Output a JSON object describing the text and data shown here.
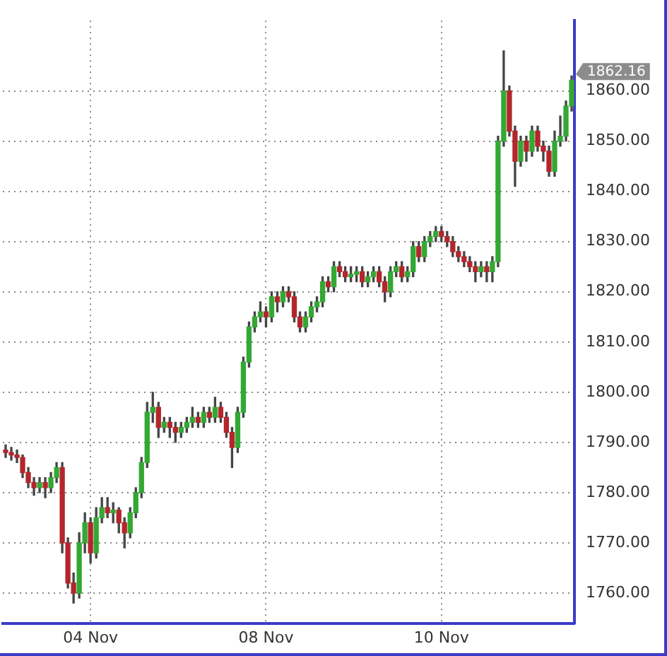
{
  "chart_data": {
    "type": "candlestick",
    "categories": [
      null,
      null,
      null,
      null,
      null,
      null,
      null,
      null,
      null,
      null,
      null,
      null,
      null,
      null,
      null,
      "04 Nov",
      null,
      null,
      null,
      null,
      null,
      null,
      null,
      null,
      null,
      null,
      null,
      null,
      null,
      null,
      null,
      null,
      null,
      null,
      null,
      null,
      null,
      null,
      null,
      null,
      null,
      null,
      null,
      null,
      null,
      null,
      "08 Nov",
      null,
      null,
      null,
      null,
      null,
      null,
      null,
      null,
      null,
      null,
      null,
      null,
      null,
      null,
      null,
      null,
      null,
      null,
      null,
      null,
      null,
      null,
      null,
      null,
      null,
      null,
      null,
      null,
      null,
      null,
      "10 Nov",
      null,
      null,
      null,
      null,
      null,
      null,
      null,
      null,
      null,
      null,
      null,
      null,
      null,
      null,
      null,
      null,
      null,
      null,
      null,
      null,
      null,
      null,
      null
    ],
    "ohlc": [
      [
        1788.5,
        1789.5,
        1787,
        1788
      ],
      [
        1788,
        1789,
        1786.5,
        1787.5
      ],
      [
        1787.5,
        1788.5,
        1786,
        1787
      ],
      [
        1787,
        1787.5,
        1783,
        1784
      ],
      [
        1784,
        1785,
        1781,
        1782
      ],
      [
        1782,
        1783,
        1779.5,
        1781
      ],
      [
        1781,
        1783,
        1780,
        1782
      ],
      [
        1782,
        1783,
        1779,
        1781
      ],
      [
        1781,
        1784,
        1780,
        1783
      ],
      [
        1783,
        1786,
        1782,
        1785
      ],
      [
        1785,
        1786,
        1768,
        1770
      ],
      [
        1770,
        1771,
        1761,
        1762
      ],
      [
        1762,
        1764,
        1758,
        1760
      ],
      [
        1760,
        1772,
        1759,
        1770
      ],
      [
        1770,
        1776,
        1768,
        1774
      ],
      [
        1774,
        1775,
        1766,
        1768
      ],
      [
        1768,
        1777,
        1767,
        1775
      ],
      [
        1775,
        1779,
        1774,
        1777
      ],
      [
        1777,
        1779,
        1775,
        1776
      ],
      [
        1776,
        1778,
        1774,
        1776.5
      ],
      [
        1776.5,
        1777,
        1772,
        1774
      ],
      [
        1774,
        1775,
        1769,
        1772
      ],
      [
        1772,
        1777,
        1771,
        1776
      ],
      [
        1776,
        1781,
        1775,
        1780
      ],
      [
        1780,
        1787,
        1779,
        1786
      ],
      [
        1786,
        1798,
        1785,
        1796
      ],
      [
        1796,
        1800,
        1794,
        1797
      ],
      [
        1797,
        1798,
        1791,
        1793
      ],
      [
        1793,
        1795,
        1792,
        1794
      ],
      [
        1794,
        1795,
        1791,
        1793
      ],
      [
        1793,
        1794,
        1790,
        1792
      ],
      [
        1792,
        1794,
        1791,
        1793
      ],
      [
        1793,
        1795,
        1792,
        1794
      ],
      [
        1794,
        1797,
        1793,
        1795
      ],
      [
        1795,
        1796,
        1793,
        1794
      ],
      [
        1794,
        1797,
        1793,
        1796
      ],
      [
        1796,
        1797,
        1794,
        1795
      ],
      [
        1795,
        1799,
        1794,
        1797
      ],
      [
        1797,
        1798,
        1794,
        1795
      ],
      [
        1795,
        1796,
        1791,
        1792
      ],
      [
        1792,
        1793,
        1785,
        1789
      ],
      [
        1789,
        1797,
        1788,
        1796
      ],
      [
        1796,
        1807,
        1795,
        1806
      ],
      [
        1806,
        1814,
        1805,
        1813
      ],
      [
        1813,
        1816,
        1812,
        1815
      ],
      [
        1815,
        1818,
        1814,
        1816
      ],
      [
        1816,
        1817,
        1813,
        1815
      ],
      [
        1815,
        1820,
        1814,
        1819
      ],
      [
        1819,
        1820,
        1816,
        1818
      ],
      [
        1818,
        1821,
        1817,
        1820
      ],
      [
        1820,
        1821,
        1818,
        1819
      ],
      [
        1819,
        1820,
        1814,
        1815
      ],
      [
        1815,
        1816,
        1812,
        1813
      ],
      [
        1813,
        1816,
        1812,
        1815
      ],
      [
        1815,
        1818,
        1814,
        1817
      ],
      [
        1817,
        1819,
        1816,
        1818
      ],
      [
        1818,
        1823,
        1817,
        1822
      ],
      [
        1822,
        1823,
        1820,
        1821
      ],
      [
        1821,
        1826,
        1820,
        1825
      ],
      [
        1825,
        1826,
        1823,
        1824
      ],
      [
        1824,
        1825,
        1822,
        1823
      ],
      [
        1823,
        1825,
        1822,
        1823.5
      ],
      [
        1823.5,
        1825,
        1822,
        1824
      ],
      [
        1824,
        1825,
        1821,
        1822
      ],
      [
        1822,
        1824,
        1821,
        1823
      ],
      [
        1823,
        1825,
        1822,
        1824
      ],
      [
        1824,
        1825,
        1821,
        1822
      ],
      [
        1822,
        1823,
        1818,
        1820
      ],
      [
        1820,
        1825,
        1819,
        1824
      ],
      [
        1824,
        1826,
        1823,
        1825
      ],
      [
        1825,
        1826,
        1822,
        1823
      ],
      [
        1823,
        1825,
        1822,
        1824
      ],
      [
        1824,
        1830,
        1823,
        1829
      ],
      [
        1829,
        1830,
        1826,
        1827
      ],
      [
        1827,
        1831,
        1826,
        1830
      ],
      [
        1830,
        1832,
        1829,
        1831
      ],
      [
        1831,
        1833,
        1830,
        1832
      ],
      [
        1832,
        1833,
        1830,
        1831
      ],
      [
        1831,
        1832,
        1829,
        1830
      ],
      [
        1830,
        1831,
        1827,
        1828
      ],
      [
        1828,
        1829,
        1826,
        1827
      ],
      [
        1827,
        1828,
        1825,
        1826
      ],
      [
        1826,
        1827,
        1824,
        1825
      ],
      [
        1825,
        1826,
        1822,
        1824
      ],
      [
        1824,
        1826,
        1823,
        1825
      ],
      [
        1825,
        1826,
        1822,
        1824
      ],
      [
        1824,
        1827,
        1822,
        1826
      ],
      [
        1826,
        1851,
        1825,
        1850
      ],
      [
        1850,
        1868,
        1849,
        1860
      ],
      [
        1860,
        1861,
        1851,
        1852
      ],
      [
        1852,
        1853,
        1841,
        1846
      ],
      [
        1846,
        1851,
        1845,
        1850
      ],
      [
        1850,
        1851,
        1846,
        1848
      ],
      [
        1848,
        1853,
        1847,
        1852
      ],
      [
        1852,
        1853,
        1848,
        1849
      ],
      [
        1849,
        1850,
        1846,
        1848
      ],
      [
        1848,
        1849,
        1843,
        1844
      ],
      [
        1844,
        1852,
        1843,
        1850
      ],
      [
        1850,
        1855,
        1849,
        1851
      ],
      [
        1851,
        1858,
        1850,
        1857
      ],
      [
        1857,
        1863,
        1856,
        1862.16
      ]
    ],
    "colors": [
      "#b3262b",
      "#b3262b",
      "#b3262b",
      "#b3262b",
      "#b3262b",
      "#b3262b",
      "#33a833",
      "#b3262b",
      "#33a833",
      "#33a833",
      "#b3262b",
      "#b3262b",
      "#b3262b",
      "#33a833",
      "#33a833",
      "#b3262b",
      "#33a833",
      "#33a833",
      "#b3262b",
      "#33a833",
      "#b3262b",
      "#b3262b",
      "#33a833",
      "#33a833",
      "#33a833",
      "#33a833",
      "#33a833",
      "#b3262b",
      "#33a833",
      "#b3262b",
      "#b3262b",
      "#33a833",
      "#33a833",
      "#33a833",
      "#b3262b",
      "#33a833",
      "#b3262b",
      "#33a833",
      "#b3262b",
      "#b3262b",
      "#b3262b",
      "#33a833",
      "#33a833",
      "#33a833",
      "#33a833",
      "#33a833",
      "#b3262b",
      "#33a833",
      "#b3262b",
      "#33a833",
      "#b3262b",
      "#b3262b",
      "#b3262b",
      "#33a833",
      "#33a833",
      "#33a833",
      "#33a833",
      "#b3262b",
      "#33a833",
      "#b3262b",
      "#b3262b",
      "#33a833",
      "#33a833",
      "#b3262b",
      "#33a833",
      "#33a833",
      "#b3262b",
      "#b3262b",
      "#33a833",
      "#33a833",
      "#b3262b",
      "#33a833",
      "#33a833",
      "#b3262b",
      "#33a833",
      "#33a833",
      "#33a833",
      "#b3262b",
      "#b3262b",
      "#b3262b",
      "#b3262b",
      "#b3262b",
      "#b3262b",
      "#b3262b",
      "#33a833",
      "#b3262b",
      "#33a833",
      "#33a833",
      "#33a833",
      "#b3262b",
      "#b3262b",
      "#33a833",
      "#b3262b",
      "#33a833",
      "#b3262b",
      "#b3262b",
      "#b3262b",
      "#33a833",
      "#33a833",
      "#33a833",
      "#33a833"
    ],
    "ylim": [
      1754,
      1874
    ],
    "yticks": [
      {
        "value": 1760,
        "label": "1760.00"
      },
      {
        "value": 1770,
        "label": "1770.00"
      },
      {
        "value": 1780,
        "label": "1780.00"
      },
      {
        "value": 1790,
        "label": "1790.00"
      },
      {
        "value": 1800,
        "label": "1800.00"
      },
      {
        "value": 1810,
        "label": "1810.00"
      },
      {
        "value": 1820,
        "label": "1820.00"
      },
      {
        "value": 1830,
        "label": "1830.00"
      },
      {
        "value": 1840,
        "label": "1840.00"
      },
      {
        "value": 1850,
        "label": "1850.00"
      },
      {
        "value": 1860,
        "label": "1860.00"
      }
    ],
    "annotations": [
      "1862.16"
    ],
    "grid": true,
    "legend": false
  }
}
